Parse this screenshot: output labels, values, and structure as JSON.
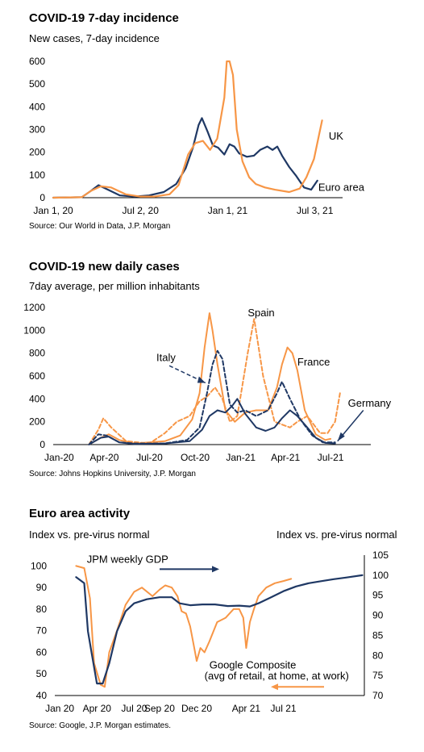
{
  "colors": {
    "navy": "#1F3864",
    "orange": "#F79646"
  },
  "chart_data": [
    {
      "type": "line",
      "title": "COVID-19 7-day incidence",
      "subtitle": "New cases, 7-day incidence",
      "source": "Source: Our World in Data, J.P. Morgan",
      "xlim": [
        "2020-01-01",
        "2021-08-30"
      ],
      "ylim": [
        0,
        600
      ],
      "yticks": [
        0,
        100,
        200,
        300,
        400,
        500,
        600
      ],
      "xticks": [
        {
          "date": "2020-01-01",
          "label": "Jan 1, 20"
        },
        {
          "date": "2020-07-02",
          "label": "Jul 2, 20"
        },
        {
          "date": "2021-01-01",
          "label": "Jan 1, 21"
        },
        {
          "date": "2021-07-03",
          "label": "Jul 3, 21"
        }
      ],
      "series": [
        {
          "name": "Euro area",
          "color": "#1F3864",
          "x": [
            "2020-01-01",
            "2020-03-01",
            "2020-03-20",
            "2020-04-05",
            "2020-04-25",
            "2020-05-20",
            "2020-06-20",
            "2020-07-20",
            "2020-08-20",
            "2020-09-15",
            "2020-10-05",
            "2020-10-20",
            "2020-11-01",
            "2020-11-08",
            "2020-11-20",
            "2020-12-01",
            "2020-12-12",
            "2020-12-25",
            "2021-01-05",
            "2021-01-15",
            "2021-01-25",
            "2021-02-10",
            "2021-02-25",
            "2021-03-10",
            "2021-03-25",
            "2021-04-05",
            "2021-04-15",
            "2021-04-25",
            "2021-05-10",
            "2021-05-25",
            "2021-06-10",
            "2021-06-25",
            "2021-07-08"
          ],
          "values": [
            0,
            2,
            30,
            55,
            35,
            10,
            5,
            10,
            25,
            60,
            130,
            220,
            320,
            350,
            290,
            230,
            220,
            190,
            235,
            225,
            195,
            180,
            185,
            210,
            225,
            210,
            225,
            185,
            135,
            95,
            45,
            35,
            75
          ]
        },
        {
          "name": "UK",
          "color": "#F79646",
          "x": [
            "2020-01-01",
            "2020-03-01",
            "2020-03-20",
            "2020-04-10",
            "2020-05-01",
            "2020-06-01",
            "2020-07-01",
            "2020-08-01",
            "2020-09-01",
            "2020-09-20",
            "2020-10-10",
            "2020-10-25",
            "2020-11-10",
            "2020-11-25",
            "2020-12-10",
            "2020-12-25",
            "2020-12-30",
            "2021-01-05",
            "2021-01-12",
            "2021-01-20",
            "2021-02-01",
            "2021-02-15",
            "2021-03-01",
            "2021-03-20",
            "2021-04-10",
            "2021-05-10",
            "2021-06-01",
            "2021-06-15",
            "2021-07-01",
            "2021-07-12",
            "2021-07-18"
          ],
          "values": [
            0,
            2,
            30,
            50,
            45,
            15,
            5,
            5,
            15,
            55,
            190,
            240,
            250,
            210,
            260,
            440,
            600,
            600,
            540,
            300,
            160,
            90,
            60,
            45,
            35,
            25,
            40,
            90,
            170,
            280,
            340
          ]
        }
      ],
      "labels": [
        {
          "name": "UK",
          "x": "2021-08-01",
          "y": 270
        },
        {
          "name": "Euro area",
          "x": "2021-07-10",
          "y": 45
        }
      ]
    },
    {
      "type": "line",
      "title": "COVID-19 new daily cases",
      "subtitle": "7day average, per million inhabitants",
      "source": "Source: Johns Hopkins University, J.P. Morgan",
      "xlim": [
        "2019-12-20",
        "2021-09-20"
      ],
      "ylim": [
        0,
        1200
      ],
      "yticks": [
        0,
        200,
        400,
        600,
        800,
        1000,
        1200
      ],
      "xticks": [
        {
          "date": "2020-01-01",
          "label": "Jan-20"
        },
        {
          "date": "2020-04-01",
          "label": "Apr-20"
        },
        {
          "date": "2020-07-01",
          "label": "Jul-20"
        },
        {
          "date": "2020-10-01",
          "label": "Oct-20"
        },
        {
          "date": "2021-01-01",
          "label": "Jan-21"
        },
        {
          "date": "2021-04-01",
          "label": "Apr-21"
        },
        {
          "date": "2021-07-01",
          "label": "Jul-21"
        }
      ],
      "series": [
        {
          "name": "France",
          "color": "#F79646",
          "dash": false,
          "x": [
            "2020-03-01",
            "2020-03-25",
            "2020-04-10",
            "2020-05-01",
            "2020-06-01",
            "2020-08-01",
            "2020-09-01",
            "2020-09-25",
            "2020-10-10",
            "2020-10-20",
            "2020-10-30",
            "2020-11-05",
            "2020-11-15",
            "2020-12-01",
            "2020-12-20",
            "2021-01-10",
            "2021-02-01",
            "2021-02-25",
            "2021-03-15",
            "2021-03-25",
            "2021-04-05",
            "2021-04-15",
            "2021-04-25",
            "2021-05-10",
            "2021-06-01",
            "2021-06-20",
            "2021-07-01"
          ],
          "values": [
            0,
            60,
            90,
            40,
            10,
            30,
            80,
            220,
            450,
            850,
            1150,
            1000,
            700,
            300,
            200,
            280,
            300,
            300,
            500,
            700,
            850,
            800,
            650,
            300,
            90,
            40,
            50
          ]
        },
        {
          "name": "Spain",
          "color": "#F79646",
          "dash": true,
          "x": [
            "2020-03-01",
            "2020-03-20",
            "2020-03-30",
            "2020-04-15",
            "2020-05-15",
            "2020-07-01",
            "2020-08-01",
            "2020-08-25",
            "2020-09-20",
            "2020-10-10",
            "2020-10-25",
            "2020-11-10",
            "2020-11-25",
            "2020-12-10",
            "2020-12-25",
            "2021-01-15",
            "2021-01-28",
            "2021-02-15",
            "2021-03-10",
            "2021-04-10",
            "2021-04-25",
            "2021-05-15",
            "2021-06-10",
            "2021-06-25",
            "2021-07-10",
            "2021-07-20"
          ],
          "values": [
            0,
            130,
            230,
            150,
            30,
            10,
            100,
            200,
            250,
            380,
            420,
            500,
            400,
            200,
            250,
            800,
            1100,
            600,
            200,
            150,
            200,
            250,
            100,
            100,
            200,
            450
          ]
        },
        {
          "name": "Italy",
          "color": "#1F3864",
          "dash": true,
          "x": [
            "2020-03-01",
            "2020-03-20",
            "2020-04-05",
            "2020-05-01",
            "2020-06-01",
            "2020-08-01",
            "2020-09-15",
            "2020-10-10",
            "2020-10-25",
            "2020-11-05",
            "2020-11-15",
            "2020-11-25",
            "2020-12-10",
            "2020-12-25",
            "2021-01-10",
            "2021-02-01",
            "2021-02-25",
            "2021-03-15",
            "2021-03-25",
            "2021-04-10",
            "2021-05-01",
            "2021-05-25",
            "2021-06-15",
            "2021-07-10"
          ],
          "values": [
            0,
            90,
            80,
            20,
            10,
            10,
            40,
            150,
            450,
            700,
            820,
            750,
            350,
            280,
            300,
            250,
            300,
            450,
            550,
            400,
            220,
            80,
            20,
            20
          ]
        },
        {
          "name": "Germany",
          "color": "#1F3864",
          "dash": false,
          "x": [
            "2020-03-01",
            "2020-03-25",
            "2020-04-10",
            "2020-05-01",
            "2020-06-01",
            "2020-08-01",
            "2020-09-20",
            "2020-10-15",
            "2020-10-30",
            "2020-11-15",
            "2020-12-01",
            "2020-12-15",
            "2020-12-25",
            "2021-01-10",
            "2021-02-01",
            "2021-02-20",
            "2021-03-10",
            "2021-03-25",
            "2021-04-10",
            "2021-04-25",
            "2021-05-15",
            "2021-06-01",
            "2021-06-20",
            "2021-07-10"
          ],
          "values": [
            0,
            60,
            70,
            20,
            5,
            10,
            30,
            130,
            250,
            300,
            280,
            340,
            400,
            270,
            150,
            120,
            150,
            230,
            300,
            250,
            150,
            60,
            15,
            10
          ]
        }
      ],
      "labels": [
        {
          "name": "Spain",
          "x": "2021-01-15",
          "y": 1150
        },
        {
          "name": "Italy",
          "x": "2020-07-15",
          "y": 760
        },
        {
          "name": "France",
          "x": "2021-04-25",
          "y": 720
        },
        {
          "name": "Germany",
          "x": "2021-08-05",
          "y": 360
        }
      ]
    },
    {
      "type": "line",
      "title": "Euro area activity",
      "ylabel_left": "Index vs. pre-virus normal",
      "ylabel_right": "Index vs. pre-virus normal",
      "source": "Source: Google, J.P. Morgan estimates.",
      "xlim": [
        "2019-12-20",
        "2022-01-15"
      ],
      "ylim_left": [
        40,
        105
      ],
      "yticks_left": [
        40,
        50,
        60,
        70,
        80,
        90,
        100
      ],
      "ylim_right": [
        70,
        105
      ],
      "yticks_right": [
        70,
        75,
        80,
        85,
        90,
        95,
        100,
        105
      ],
      "xticks": [
        {
          "date": "2020-01-01",
          "label": "Jan 20"
        },
        {
          "date": "2020-04-01",
          "label": "Apr 20"
        },
        {
          "date": "2020-07-01",
          "label": "Jul 20"
        },
        {
          "date": "2020-09-01",
          "label": "Sep 20"
        },
        {
          "date": "2020-12-01",
          "label": "Dec 20"
        },
        {
          "date": "2021-04-01",
          "label": "Apr 21"
        },
        {
          "date": "2021-07-01",
          "label": "Jul 21"
        }
      ],
      "series": [
        {
          "name": "JPM weekly GDP",
          "axis": "right",
          "color": "#1F3864",
          "x": [
            "2020-02-10",
            "2020-03-01",
            "2020-03-10",
            "2020-03-20",
            "2020-04-01",
            "2020-04-15",
            "2020-05-01",
            "2020-05-20",
            "2020-06-10",
            "2020-07-01",
            "2020-08-01",
            "2020-09-01",
            "2020-10-01",
            "2020-10-20",
            "2020-11-15",
            "2020-12-15",
            "2021-01-15",
            "2021-02-15",
            "2021-03-15",
            "2021-04-10",
            "2021-05-01",
            "2021-06-01",
            "2021-07-01",
            "2021-08-01",
            "2021-09-01",
            "2021-10-01",
            "2021-11-01",
            "2021-12-01",
            "2022-01-10"
          ],
          "values": [
            99.5,
            98,
            86,
            80,
            73,
            73,
            78,
            86,
            91,
            93,
            94,
            94.5,
            94.5,
            93,
            92.5,
            92.7,
            92.7,
            92.3,
            92.4,
            92.2,
            93,
            94.5,
            96,
            97.2,
            98,
            98.5,
            99,
            99.4,
            100
          ]
        },
        {
          "name": "Google Composite",
          "axis": "left",
          "color": "#F79646",
          "x": [
            "2020-02-10",
            "2020-03-01",
            "2020-03-15",
            "2020-03-25",
            "2020-04-10",
            "2020-04-20",
            "2020-05-01",
            "2020-05-20",
            "2020-06-10",
            "2020-07-01",
            "2020-07-20",
            "2020-08-15",
            "2020-09-01",
            "2020-09-15",
            "2020-10-01",
            "2020-10-15",
            "2020-10-25",
            "2020-11-05",
            "2020-11-15",
            "2020-11-25",
            "2020-12-01",
            "2020-12-10",
            "2020-12-20",
            "2021-01-01",
            "2021-01-20",
            "2021-02-10",
            "2021-03-01",
            "2021-03-15",
            "2021-03-25",
            "2021-04-01",
            "2021-04-10",
            "2021-04-20",
            "2021-05-01",
            "2021-05-20",
            "2021-06-10",
            "2021-07-01",
            "2021-07-20"
          ],
          "values": [
            100,
            99,
            85,
            55,
            45,
            44,
            60,
            70,
            82,
            88,
            90,
            86,
            89,
            91,
            90,
            86,
            79,
            78,
            72,
            62,
            56,
            62,
            60,
            65,
            74,
            76,
            80,
            80,
            76,
            62,
            74,
            80,
            86,
            90,
            92,
            93,
            94
          ]
        }
      ],
      "annotations": [
        {
          "text": "JPM weekly GDP",
          "x": "2020-06-15",
          "y": 103
        },
        {
          "text": "Google Composite",
          "x": "2021-01-01",
          "y": 54
        },
        {
          "text": "(avg of retail, at home, at work)",
          "x": "2020-12-20",
          "y": 49
        }
      ]
    }
  ]
}
